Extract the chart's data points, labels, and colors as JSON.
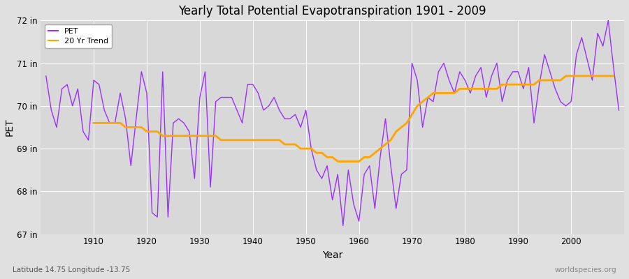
{
  "title": "Yearly Total Potential Evapotranspiration 1901 - 2009",
  "xlabel": "Year",
  "ylabel": "PET",
  "subtitle_left": "Latitude 14.75 Longitude -13.75",
  "subtitle_right": "worldspecies.org",
  "ylim": [
    67,
    72
  ],
  "yticks": [
    67,
    68,
    69,
    70,
    71,
    72
  ],
  "ytick_labels": [
    "67 in",
    "68 in",
    "69 in",
    "70 in",
    "71 in",
    "72 in"
  ],
  "bg_color": "#e0e0e0",
  "plot_bg_color": "#d8d8d8",
  "grid_color": "#ffffff",
  "pet_color": "#9B30FF",
  "trend_color": "#FFA500",
  "years": [
    1901,
    1902,
    1903,
    1904,
    1905,
    1906,
    1907,
    1908,
    1909,
    1910,
    1911,
    1912,
    1913,
    1914,
    1915,
    1916,
    1917,
    1918,
    1919,
    1920,
    1921,
    1922,
    1923,
    1924,
    1925,
    1926,
    1927,
    1928,
    1929,
    1930,
    1931,
    1932,
    1933,
    1934,
    1935,
    1936,
    1937,
    1938,
    1939,
    1940,
    1941,
    1942,
    1943,
    1944,
    1945,
    1946,
    1947,
    1948,
    1949,
    1950,
    1951,
    1952,
    1953,
    1954,
    1955,
    1956,
    1957,
    1958,
    1959,
    1960,
    1961,
    1962,
    1963,
    1964,
    1965,
    1966,
    1967,
    1968,
    1969,
    1970,
    1971,
    1972,
    1973,
    1974,
    1975,
    1976,
    1977,
    1978,
    1979,
    1980,
    1981,
    1982,
    1983,
    1984,
    1985,
    1986,
    1987,
    1988,
    1989,
    1990,
    1991,
    1992,
    1993,
    1994,
    1995,
    1996,
    1997,
    1998,
    1999,
    2000,
    2001,
    2002,
    2003,
    2004,
    2005,
    2006,
    2007,
    2008,
    2009
  ],
  "pet_values": [
    70.7,
    69.9,
    69.5,
    70.4,
    70.5,
    70.0,
    70.4,
    69.4,
    69.2,
    70.6,
    70.5,
    69.9,
    69.6,
    69.6,
    70.3,
    69.7,
    68.6,
    69.7,
    70.8,
    70.3,
    67.5,
    67.4,
    70.8,
    67.4,
    69.6,
    69.7,
    69.6,
    69.4,
    68.3,
    70.2,
    70.8,
    68.1,
    70.1,
    70.2,
    70.2,
    70.2,
    69.9,
    69.6,
    70.5,
    70.5,
    70.3,
    69.9,
    70.0,
    70.2,
    69.9,
    69.7,
    69.7,
    69.8,
    69.5,
    69.9,
    69.0,
    68.5,
    68.3,
    68.6,
    67.8,
    68.4,
    67.2,
    68.5,
    67.7,
    67.3,
    68.4,
    68.6,
    67.6,
    68.8,
    69.7,
    68.6,
    67.6,
    68.4,
    68.5,
    71.0,
    70.6,
    69.5,
    70.2,
    70.1,
    70.8,
    71.0,
    70.6,
    70.3,
    70.8,
    70.6,
    70.3,
    70.7,
    70.9,
    70.2,
    70.7,
    71.0,
    70.1,
    70.6,
    70.8,
    70.8,
    70.4,
    70.9,
    69.6,
    70.5,
    71.2,
    70.8,
    70.4,
    70.1,
    70.0,
    70.1,
    71.2,
    71.6,
    71.1,
    70.6,
    71.7,
    71.4,
    72.0,
    70.9,
    69.9
  ],
  "trend_values": [
    null,
    null,
    null,
    null,
    null,
    null,
    null,
    null,
    null,
    69.6,
    69.6,
    69.6,
    69.6,
    69.6,
    69.6,
    69.5,
    69.5,
    69.5,
    69.5,
    69.4,
    69.4,
    69.4,
    69.3,
    69.3,
    69.3,
    69.3,
    69.3,
    69.3,
    69.3,
    69.3,
    69.3,
    69.3,
    69.3,
    69.2,
    69.2,
    69.2,
    69.2,
    69.2,
    69.2,
    69.2,
    69.2,
    69.2,
    69.2,
    69.2,
    69.2,
    69.1,
    69.1,
    69.1,
    69.0,
    69.0,
    69.0,
    68.9,
    68.9,
    68.8,
    68.8,
    68.7,
    68.7,
    68.7,
    68.7,
    68.7,
    68.8,
    68.8,
    68.9,
    69.0,
    69.1,
    69.2,
    69.4,
    69.5,
    69.6,
    69.8,
    70.0,
    70.1,
    70.2,
    70.3,
    70.3,
    70.3,
    70.3,
    70.3,
    70.4,
    70.4,
    70.4,
    70.4,
    70.4,
    70.4,
    70.4,
    70.4,
    70.5,
    70.5,
    70.5,
    70.5,
    70.5,
    70.5,
    70.5,
    70.6,
    70.6,
    70.6,
    70.6,
    70.6,
    70.7,
    70.7,
    70.7,
    70.7,
    70.7,
    70.7,
    70.7,
    70.7,
    70.7,
    70.7
  ]
}
